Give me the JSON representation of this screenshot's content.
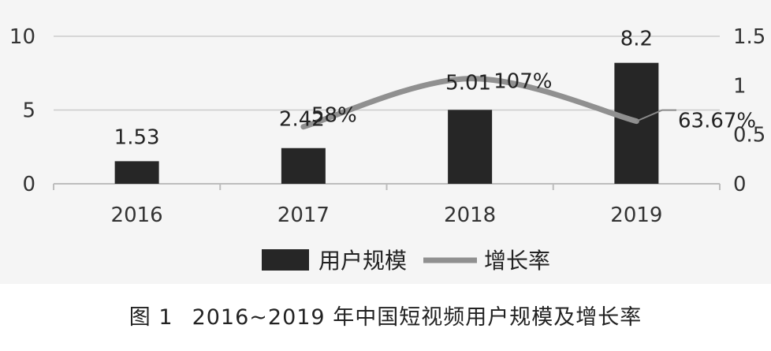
{
  "chart_data": {
    "type": "bar",
    "categories": [
      "2016",
      "2017",
      "2018",
      "2019"
    ],
    "series": [
      {
        "name": "用户规模",
        "type": "bar",
        "axis": "left",
        "values": [
          1.53,
          2.42,
          5.01,
          8.2
        ],
        "labels": [
          "1.53",
          "2.42",
          "5.01",
          "8.2"
        ],
        "color": "#262626"
      },
      {
        "name": "增长率",
        "type": "line",
        "axis": "right",
        "values": [
          null,
          0.58,
          1.07,
          0.6367
        ],
        "labels": [
          "",
          "58%",
          "107%",
          "63.67%"
        ],
        "color": "#909090"
      }
    ],
    "ylim_left": [
      0,
      10
    ],
    "yticks_left": [
      "0",
      "5",
      "10"
    ],
    "ylim_right": [
      0,
      1.5
    ],
    "yticks_right": [
      "0",
      "0.5",
      "1",
      "1.5"
    ],
    "grid": true,
    "legend_position": "bottom"
  },
  "caption": {
    "figure_number": "图 1",
    "text": "2016~2019 年中国短视频用户规模及增长率"
  }
}
